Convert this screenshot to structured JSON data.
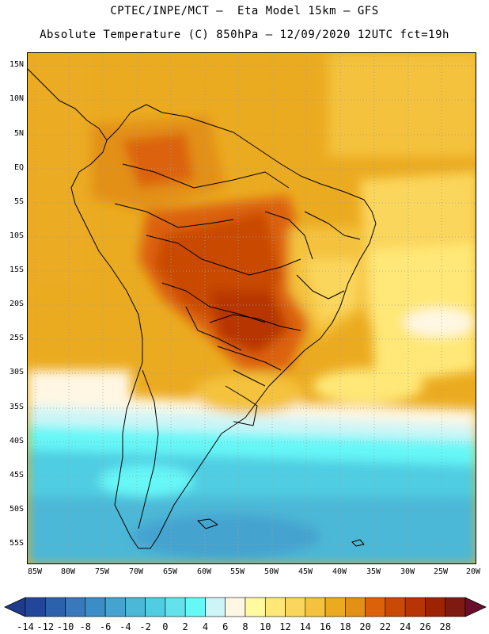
{
  "header": {
    "title_line1": "CPTEC/INPE/MCT –  Eta Model 15km – GFS",
    "title_line2": "Absolute Temperature (C) 850hPa – 12/09/2020 12UTC fct=19h"
  },
  "map": {
    "lat_labels": [
      "15N",
      "10N",
      "5N",
      "EQ",
      "5S",
      "10S",
      "15S",
      "20S",
      "25S",
      "30S",
      "35S",
      "40S",
      "45S",
      "50S",
      "55S"
    ],
    "lon_labels": [
      "85W",
      "80W",
      "75W",
      "70W",
      "65W",
      "60W",
      "55W",
      "50W",
      "45W",
      "40W",
      "35W",
      "30W",
      "25W",
      "20W"
    ]
  },
  "colorbar": {
    "labels": [
      "-14",
      "-12",
      "-10",
      "-8",
      "-6",
      "-4",
      "-2",
      "0",
      "2",
      "4",
      "6",
      "8",
      "10",
      "12",
      "14",
      "16",
      "18",
      "20",
      "22",
      "24",
      "26",
      "28"
    ],
    "colors": [
      "#22479a",
      "#2c62ab",
      "#3a78bc",
      "#3b8ec5",
      "#44a3cf",
      "#4bb8d7",
      "#50cde2",
      "#63e1ec",
      "#66f7f7",
      "#cdf5f7",
      "#fff7e3",
      "#fffaa0",
      "#ffe877",
      "#fbd65c",
      "#f4c23e",
      "#ebab20",
      "#e39016",
      "#dc620a",
      "#c94a06",
      "#b73404",
      "#9c2402",
      "#7e1a12"
    ],
    "under_color": "#1e3b8c",
    "over_color": "#6a0f2b"
  }
}
